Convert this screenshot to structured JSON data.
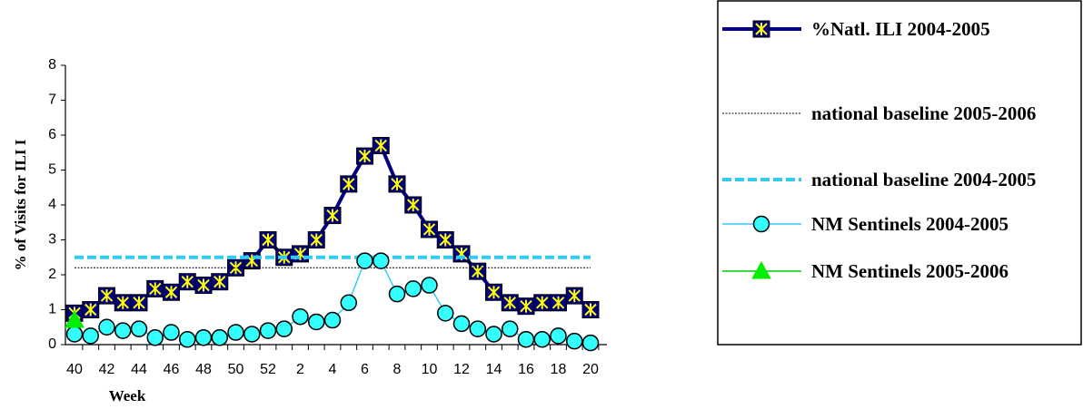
{
  "chart_data": {
    "type": "line",
    "x_label": "Week",
    "y_label": "% of Visits for ILI I",
    "categories": [
      "40",
      null,
      "42",
      null,
      "44",
      null,
      "46",
      null,
      "48",
      null,
      "50",
      null,
      "52",
      null,
      "2",
      null,
      "4",
      null,
      "6",
      null,
      "8",
      null,
      "10",
      null,
      "12",
      null,
      "14",
      null,
      "16",
      null,
      "18",
      null,
      "20"
    ],
    "ylim": [
      0,
      8
    ],
    "yticks": [
      0,
      1,
      2,
      3,
      4,
      5,
      6,
      7,
      8
    ],
    "legend": "right",
    "series": [
      {
        "name": "%Natl. ILI 2004-2005",
        "color": "#000080",
        "marker": "x-square",
        "marker_color": "#ffff00",
        "dash": "solid",
        "width": 4,
        "values": [
          0.9,
          1.0,
          1.4,
          1.2,
          1.2,
          1.6,
          1.5,
          1.8,
          1.7,
          1.8,
          2.2,
          2.4,
          3.0,
          2.5,
          2.6,
          3.0,
          3.7,
          4.6,
          5.4,
          5.7,
          4.6,
          4.0,
          3.3,
          3.0,
          2.6,
          2.1,
          1.5,
          1.2,
          1.1,
          1.2,
          1.2,
          1.4,
          1.0
        ]
      },
      {
        "name": "national baseline 2005-2006",
        "color": "#000000",
        "marker": null,
        "dash": "dotted",
        "width": 1,
        "values": [
          2.2,
          2.2,
          2.2,
          2.2,
          2.2,
          2.2,
          2.2,
          2.2,
          2.2,
          2.2,
          2.2,
          2.2,
          2.2,
          2.2,
          2.2,
          2.2,
          2.2,
          2.2,
          2.2,
          2.2,
          2.2,
          2.2,
          2.2,
          2.2,
          2.2,
          2.2,
          2.2,
          2.2,
          2.2,
          2.2,
          2.2,
          2.2,
          2.2
        ]
      },
      {
        "name": "national baseline 2004-2005",
        "color": "#33ccee",
        "marker": null,
        "dash": "dashed",
        "width": 4,
        "values": [
          2.5,
          2.5,
          2.5,
          2.5,
          2.5,
          2.5,
          2.5,
          2.5,
          2.5,
          2.5,
          2.5,
          2.5,
          2.5,
          2.5,
          2.5,
          2.5,
          2.5,
          2.5,
          2.5,
          2.5,
          2.5,
          2.5,
          2.5,
          2.5,
          2.5,
          2.5,
          2.5,
          2.5,
          2.5,
          2.5,
          2.5,
          2.5,
          2.5
        ]
      },
      {
        "name": "NM Sentinels 2004-2005",
        "color": "#33ccff",
        "marker": "circle",
        "marker_color": "#33ffff",
        "dash": "solid",
        "width": 1.5,
        "values": [
          0.3,
          0.25,
          0.5,
          0.4,
          0.45,
          0.2,
          0.35,
          0.15,
          0.2,
          0.2,
          0.35,
          0.3,
          0.4,
          0.45,
          0.8,
          0.65,
          0.7,
          1.2,
          2.4,
          2.4,
          1.45,
          1.6,
          1.7,
          0.9,
          0.6,
          0.45,
          0.3,
          0.45,
          0.15,
          0.15,
          0.25,
          0.1,
          0.05
        ]
      },
      {
        "name": "NM Sentinels 2005-2006",
        "color": "#00cc00",
        "marker": "triangle",
        "marker_color": "#00ee00",
        "dash": "solid",
        "width": 1.5,
        "values": [
          0.7,
          null,
          null,
          null,
          null,
          null,
          null,
          null,
          null,
          null,
          null,
          null,
          null,
          null,
          null,
          null,
          null,
          null,
          null,
          null,
          null,
          null,
          null,
          null,
          null,
          null,
          null,
          null,
          null,
          null,
          null,
          null,
          null
        ]
      }
    ]
  }
}
